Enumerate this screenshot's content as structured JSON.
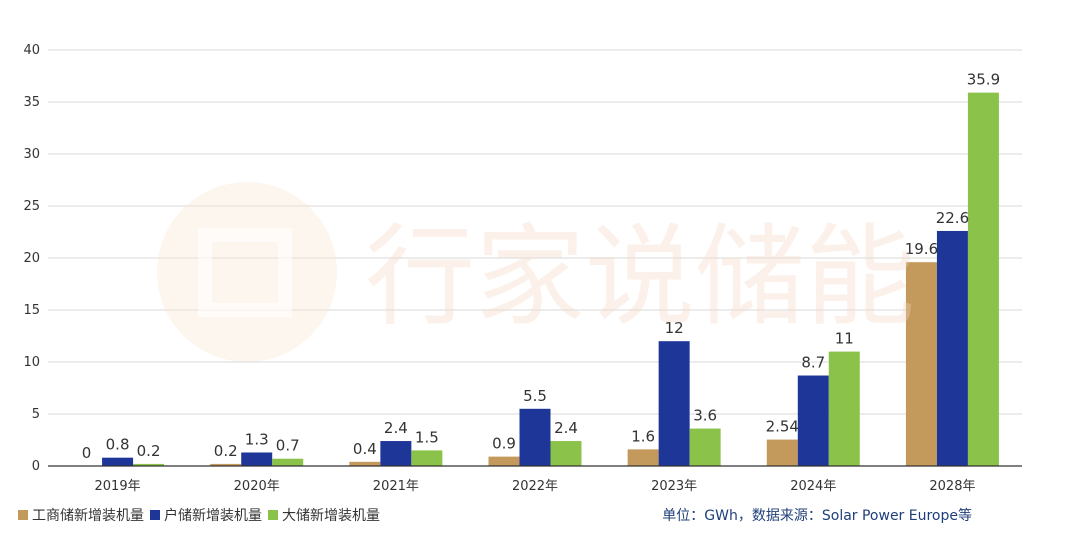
{
  "chart_data": {
    "type": "bar",
    "categories": [
      "2019年",
      "2020年",
      "2021年",
      "2022年",
      "2023年",
      "2024年",
      "2028年"
    ],
    "series": [
      {
        "name": "工商储新增装机量",
        "color": "#c49a5c",
        "values": [
          0,
          0.2,
          0.4,
          0.9,
          1.6,
          2.54,
          19.6
        ],
        "labels": [
          "0",
          "0.2",
          "0.4",
          "0.9",
          "1.6",
          "2.54",
          "19.6"
        ]
      },
      {
        "name": "户储新增装机量",
        "color": "#1f3699",
        "values": [
          0.8,
          1.3,
          2.4,
          5.5,
          12,
          8.7,
          22.6
        ],
        "labels": [
          "0.8",
          "1.3",
          "2.4",
          "5.5",
          "12",
          "8.7",
          "22.6"
        ]
      },
      {
        "name": "大储新增装机量",
        "color": "#8bc34a",
        "values": [
          0.2,
          0.7,
          1.5,
          2.4,
          3.6,
          11,
          35.9
        ],
        "labels": [
          "0.2",
          "0.7",
          "1.5",
          "2.4",
          "3.6",
          "11",
          "35.9"
        ]
      }
    ],
    "ylim": [
      0,
      40
    ],
    "yticks": [
      0,
      5,
      10,
      15,
      20,
      25,
      30,
      35,
      40
    ],
    "grid": true,
    "legend_position": "bottom-left"
  },
  "source_note": "单位：GWh，数据来源：Solar Power Europe等",
  "watermark": "行家说储能"
}
